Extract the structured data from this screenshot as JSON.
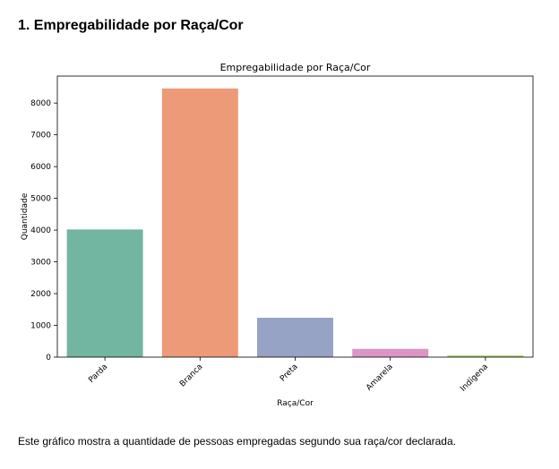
{
  "page": {
    "section_title": "1. Empregabilidade por Raça/Cor",
    "caption": "Este gráfico mostra a quantidade de pessoas empregadas segundo sua raça/cor declarada."
  },
  "chart_data": {
    "type": "bar",
    "title": "Empregabilidade por Raça/Cor",
    "xlabel": "Raça/Cor",
    "ylabel": "Quantidade",
    "categories": [
      "Parda",
      "Branca",
      "Preta",
      "Amarela",
      "Indígena"
    ],
    "values": [
      4020,
      8460,
      1240,
      260,
      50
    ],
    "colors": [
      "#72b5a0",
      "#ec9a77",
      "#97a3c5",
      "#dd95c5",
      "#a6cf5f"
    ],
    "ylim": [
      0,
      8850
    ],
    "yticks": [
      0,
      1000,
      2000,
      3000,
      4000,
      5000,
      6000,
      7000,
      8000
    ],
    "grid": false,
    "legend": "none"
  }
}
